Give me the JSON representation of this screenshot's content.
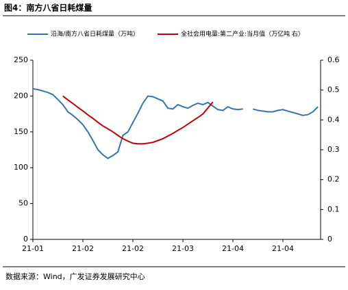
{
  "chart_data": {
    "type": "line",
    "title": "图4：南方八省日耗煤量",
    "source": "数据来源：Wind，广发证券发展研究中心",
    "categories": [
      "21-01",
      null,
      null,
      null,
      null,
      null,
      null,
      null,
      null,
      null,
      "21-02",
      null,
      null,
      null,
      null,
      null,
      null,
      null,
      null,
      null,
      "21-02",
      null,
      null,
      null,
      null,
      null,
      null,
      null,
      null,
      null,
      "21-03",
      null,
      null,
      null,
      null,
      null,
      null,
      null,
      null,
      null,
      "21-04",
      null,
      null,
      null,
      null,
      null,
      null,
      null,
      null,
      null,
      "21-04",
      null,
      null,
      null,
      null,
      null,
      null,
      null
    ],
    "series": [
      {
        "name": "沿海/南方八省日耗煤量（万吨）",
        "color": "#2e75b6",
        "values": [
          210,
          209,
          207,
          205,
          202,
          195,
          188,
          178,
          173,
          167,
          160,
          150,
          138,
          125,
          118,
          113,
          117,
          122,
          145,
          150,
          163,
          176,
          190,
          200,
          199,
          196,
          193,
          183,
          182,
          188,
          185,
          183,
          187,
          190,
          188,
          191,
          186,
          181,
          180,
          185,
          182,
          181,
          182,
          null,
          182,
          180,
          179,
          178,
          178,
          180,
          181,
          179,
          177,
          175,
          173,
          174,
          178,
          185
        ]
      },
      {
        "name": "全社会用电量:第二产业:当月值（万亿吨 右）",
        "color": "#c00000",
        "axis": "y2",
        "values": [
          null,
          null,
          null,
          null,
          null,
          null,
          0.48,
          0.467,
          0.455,
          0.442,
          0.43,
          0.417,
          0.405,
          0.392,
          0.38,
          0.37,
          0.36,
          0.348,
          0.337,
          0.329,
          0.322,
          0.32,
          0.32,
          0.322,
          0.325,
          0.331,
          0.337,
          0.346,
          0.355,
          0.365,
          0.375,
          0.386,
          0.397,
          0.408,
          0.42,
          0.44,
          0.46,
          null,
          null,
          null,
          null,
          null,
          null,
          null,
          null,
          null,
          null,
          null,
          null,
          null,
          null,
          null,
          null,
          null,
          null,
          null,
          null,
          null
        ]
      }
    ],
    "ylim": [
      0,
      250
    ],
    "yticks": [
      0,
      50,
      100,
      150,
      200,
      250
    ],
    "y2lim": [
      0,
      0.6
    ],
    "y2ticks": [
      0,
      0.1,
      0.2,
      0.3,
      0.4,
      0.5,
      0.6
    ],
    "grid": false
  }
}
